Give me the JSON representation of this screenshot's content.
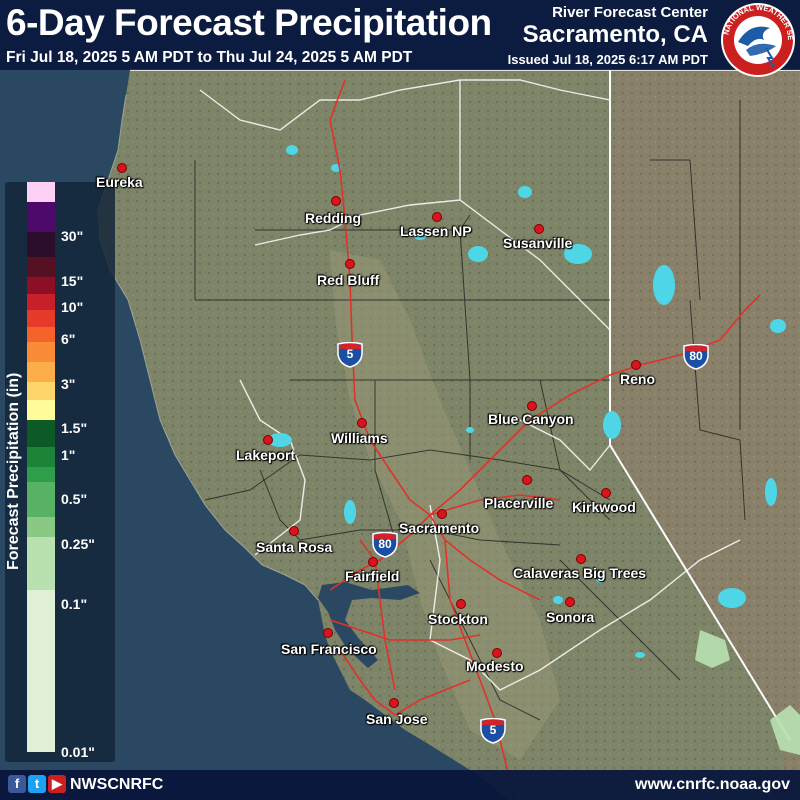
{
  "header": {
    "title": "6-Day Forecast Precipitation",
    "valid_range": "Fri Jul 18, 2025 5 AM PDT to Thu Jul 24, 2025 5 AM PDT",
    "center_name": "River Forecast Center",
    "center_location": "Sacramento, CA",
    "issued": "Issued Jul 18, 2025 6:17 AM PDT",
    "logo_text": "NATIONAL WEATHER SERVICE"
  },
  "legend": {
    "axis_label": "Forecast Precipitation (in)",
    "ticks": [
      "30\"",
      "15\"",
      "10\"",
      "6\"",
      "3\"",
      "1.5\"",
      "1\"",
      "0.5\"",
      "0.25\"",
      "0.1\"",
      "0.01\""
    ],
    "colors": [
      "#fdd0f5",
      "#4d0a6a",
      "#2c0d2a",
      "#551022",
      "#8c0f25",
      "#c8202a",
      "#e63a2a",
      "#f5632a",
      "#fb8c37",
      "#fdae48",
      "#fdd56b",
      "#fefc9a",
      "#0c5a26",
      "#1c8438",
      "#2e9e4a",
      "#58b263",
      "#89c983",
      "#b9e1b0",
      "#dff0d6"
    ]
  },
  "cities": [
    {
      "name": "Eureka"
    },
    {
      "name": "Redding"
    },
    {
      "name": "Lassen NP"
    },
    {
      "name": "Susanville"
    },
    {
      "name": "Red Bluff"
    },
    {
      "name": "Reno"
    },
    {
      "name": "Blue Canyon"
    },
    {
      "name": "Williams"
    },
    {
      "name": "Lakeport"
    },
    {
      "name": "Placerville"
    },
    {
      "name": "Kirkwood"
    },
    {
      "name": "Sacramento"
    },
    {
      "name": "Santa Rosa"
    },
    {
      "name": "Fairfield"
    },
    {
      "name": "Calaveras Big Trees"
    },
    {
      "name": "Stockton"
    },
    {
      "name": "Sonora"
    },
    {
      "name": "San Francisco"
    },
    {
      "name": "Modesto"
    },
    {
      "name": "San Jose"
    }
  ],
  "highways": [
    "5",
    "80",
    "80",
    "5"
  ],
  "footer": {
    "handle": "NWSCNRFC",
    "url": "www.cnrfc.noaa.gov",
    "social": [
      "f",
      "t",
      "▶"
    ],
    "social_colors": [
      "#3b5998",
      "#1da1f2",
      "#cc1f1f"
    ]
  },
  "colors": {
    "ocean": "#2b4862",
    "land": "#7c8266",
    "state_border": "#ffffff",
    "county_border": "#1a1a1a",
    "highway": "#e0322a",
    "lake": "#4fd6e6",
    "city_dot": "#d9141d",
    "header_bg": "#08163c"
  }
}
